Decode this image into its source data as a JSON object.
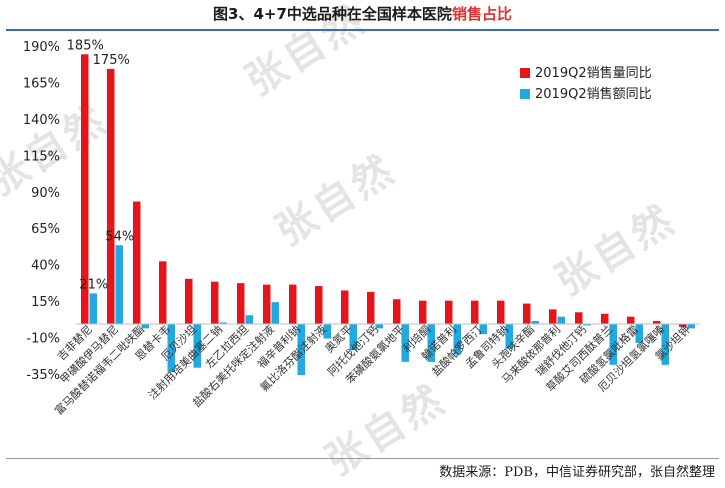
{
  "title": {
    "prefix": "图3、4+7中选品种在全国样本医院",
    "accent": "销售占比"
  },
  "source": "数据来源：PDB，中信证券研究部，张自然整理",
  "watermark": "张自然",
  "colors": {
    "series_volume": "#e8141c",
    "series_amount": "#21a9e1",
    "title_rule": "#3a6cb0"
  },
  "chart_data": {
    "type": "bar",
    "title": "图3、4+7中选品种在全国样本医院销售占比",
    "ylim": [
      -35,
      190
    ],
    "yticks": [
      -35,
      -10,
      15,
      40,
      65,
      90,
      115,
      140,
      165,
      190
    ],
    "ytick_labels": [
      "-35%",
      "-10%",
      "15%",
      "40%",
      "65%",
      "90%",
      "115%",
      "140%",
      "165%",
      "190%"
    ],
    "grid": false,
    "legend_position": "top-right",
    "categories": [
      "吉非替尼",
      "甲磺酸伊马替尼",
      "富马酸替诺福韦二吡呋酯",
      "恩替卡韦",
      "厄贝沙坦",
      "注射用培美曲塞二钠",
      "左乙拉西坦",
      "盐酸右美托咪定注射液",
      "福辛普利钠",
      "氟比洛芬酯注射液",
      "奥氮平",
      "阿托伐他汀钙",
      "苯磺酸氨氯地平",
      "利培酮",
      "赖诺普利",
      "盐酸帕罗西汀",
      "孟鲁司特钠",
      "头孢呋辛酯",
      "马来酸依那普利",
      "瑞舒伐他汀钙",
      "草酸艾司西酞普兰",
      "硫酸氢氯吡格雷",
      "厄贝沙坦氢氯噻嗪",
      "氯沙坦钾"
    ],
    "series": [
      {
        "name": "2019Q2销售量同比",
        "values": [
          185,
          175,
          84,
          43,
          31,
          29,
          28,
          27,
          27,
          26,
          23,
          22,
          17,
          16,
          16,
          16,
          16,
          14,
          10,
          8,
          7,
          5,
          2,
          -2
        ]
      },
      {
        "name": "2019Q2销售额同比",
        "values": [
          21,
          54,
          -3,
          -33,
          -30,
          1,
          6,
          15,
          -35,
          -10,
          -18,
          -3,
          -26,
          -26,
          -21,
          -7,
          -17,
          2,
          5,
          -1,
          -28,
          -13,
          -28,
          -3
        ]
      }
    ],
    "data_labels": [
      {
        "series": 0,
        "index": 0,
        "text": "185%"
      },
      {
        "series": 0,
        "index": 1,
        "text": "175%"
      },
      {
        "series": 1,
        "index": 0,
        "text": "21%"
      },
      {
        "series": 1,
        "index": 1,
        "text": "54%"
      }
    ]
  }
}
